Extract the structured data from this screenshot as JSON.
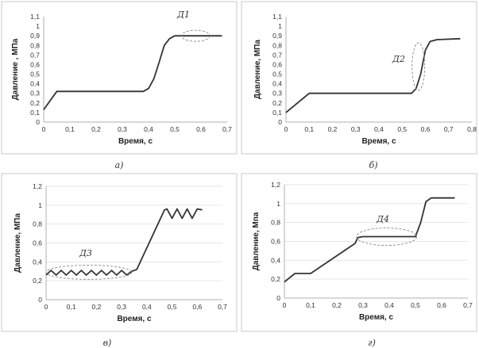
{
  "chart_data": [
    {
      "type": "line",
      "caption": "а)",
      "annotation": "Д1",
      "xlabel": "Время, с",
      "ylabel": "Давление , МПа",
      "xlim": [
        0,
        0.7
      ],
      "ylim": [
        0,
        1.1
      ],
      "x_ticks": [
        "0",
        "0,1",
        "0,2",
        "0,3",
        "0,4",
        "0,5",
        "0,6",
        "0,7"
      ],
      "y_ticks": [
        "0",
        "0,1",
        "0,2",
        "0,3",
        "0,4",
        "0,5",
        "0,6",
        "0,7",
        "0,8",
        "0,9",
        "1",
        "1,1"
      ],
      "grid": false,
      "series": [
        {
          "x": [
            0.0,
            0.05,
            0.38,
            0.4,
            0.42,
            0.44,
            0.46,
            0.48,
            0.5,
            0.68
          ],
          "y": [
            0.13,
            0.32,
            0.32,
            0.35,
            0.45,
            0.62,
            0.8,
            0.87,
            0.9,
            0.9
          ]
        }
      ]
    },
    {
      "type": "line",
      "caption": "б)",
      "annotation": "Д2",
      "xlabel": "Время, с",
      "ylabel": "Давление, МПа",
      "xlim": [
        0,
        0.8
      ],
      "ylim": [
        0,
        1.1
      ],
      "x_ticks": [
        "0",
        "0,1",
        "0,2",
        "0,3",
        "0,4",
        "0,5",
        "0,6",
        "0,7",
        "0,8"
      ],
      "y_ticks": [
        "0",
        "0,1",
        "0,2",
        "0,3",
        "0,4",
        "0,5",
        "0,6",
        "0,7",
        "0,8",
        "0,9",
        "1",
        "1,1"
      ],
      "grid": false,
      "series": [
        {
          "x": [
            0.0,
            0.1,
            0.54,
            0.56,
            0.58,
            0.6,
            0.62,
            0.65,
            0.75
          ],
          "y": [
            0.1,
            0.3,
            0.3,
            0.35,
            0.5,
            0.75,
            0.84,
            0.86,
            0.87
          ]
        }
      ]
    },
    {
      "type": "line",
      "caption": "в)",
      "annotation": "Д3",
      "xlabel": "Время, с",
      "ylabel": "Давление, МПа",
      "xlim": [
        0,
        0.7
      ],
      "ylim": [
        0,
        1.2
      ],
      "x_ticks": [
        "0",
        "0,1",
        "0,2",
        "0,3",
        "0,4",
        "0,5",
        "0,6",
        "0,7"
      ],
      "y_ticks": [
        "0",
        "0,2",
        "0,4",
        "0,6",
        "0,8",
        "1",
        "1,2"
      ],
      "grid": true,
      "series": [
        {
          "x": [
            0.0,
            0.02,
            0.04,
            0.06,
            0.08,
            0.1,
            0.12,
            0.14,
            0.16,
            0.18,
            0.2,
            0.22,
            0.24,
            0.26,
            0.28,
            0.3,
            0.32,
            0.34,
            0.36,
            0.47,
            0.48,
            0.5,
            0.52,
            0.54,
            0.56,
            0.58,
            0.6,
            0.62
          ],
          "y": [
            0.26,
            0.31,
            0.26,
            0.31,
            0.26,
            0.31,
            0.26,
            0.31,
            0.26,
            0.31,
            0.26,
            0.31,
            0.26,
            0.31,
            0.26,
            0.31,
            0.26,
            0.3,
            0.32,
            0.95,
            0.96,
            0.86,
            0.96,
            0.86,
            0.96,
            0.86,
            0.96,
            0.95
          ]
        }
      ]
    },
    {
      "type": "line",
      "caption": "г)",
      "annotation": "Д4",
      "xlabel": "Время, с",
      "ylabel": "Давление, Мпа",
      "xlim": [
        0,
        0.7
      ],
      "ylim": [
        0,
        1.2
      ],
      "x_ticks": [
        "0",
        "0,1",
        "0,2",
        "0,3",
        "0,4",
        "0,5",
        "0,6",
        "0,7"
      ],
      "y_ticks": [
        "0",
        "0,2",
        "0,4",
        "0,6",
        "0,8",
        "1",
        "1,2"
      ],
      "grid": true,
      "series": [
        {
          "x": [
            0.0,
            0.04,
            0.1,
            0.26,
            0.27,
            0.28,
            0.3,
            0.5,
            0.52,
            0.54,
            0.56,
            0.65
          ],
          "y": [
            0.17,
            0.26,
            0.26,
            0.56,
            0.58,
            0.64,
            0.65,
            0.65,
            0.8,
            1.02,
            1.06,
            1.06
          ]
        }
      ]
    }
  ]
}
